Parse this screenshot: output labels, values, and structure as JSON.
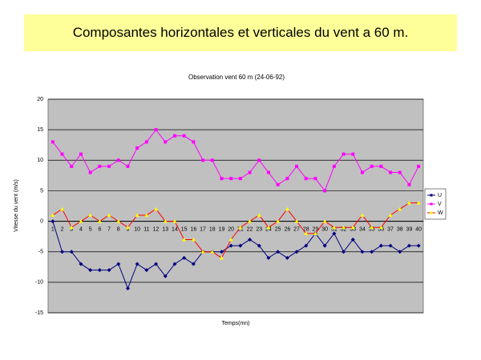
{
  "header": {
    "title": "Composantes horizontales et verticales du vent a  60 m."
  },
  "chart_data": {
    "type": "line",
    "title": "Observation vent 60 m (24-06-92)",
    "x_label": "Temps(mn)",
    "y_label": "Vitesse du vent (m/s)",
    "categories": [
      "1",
      "2",
      "3",
      "4",
      "5",
      "6",
      "7",
      "8",
      "9",
      "10",
      "11",
      "12",
      "13",
      "14",
      "15",
      "16",
      "17",
      "18",
      "19",
      "20",
      "21",
      "22",
      "23",
      "24",
      "25",
      "26",
      "27",
      "28",
      "29",
      "30",
      "31",
      "32",
      "33",
      "34",
      "35",
      "36",
      "37",
      "38",
      "39",
      "40"
    ],
    "series": [
      {
        "name": "U",
        "color": "#000080",
        "marker_color": "#000080",
        "values": [
          0,
          -5,
          -5,
          -7,
          -8,
          -8,
          -8,
          -7,
          -11,
          -7,
          -8,
          -7,
          -9,
          -7,
          -6,
          -7,
          -5,
          -5,
          -5,
          -4,
          -4,
          -3,
          -4,
          -6,
          -5,
          -6,
          -5,
          -4,
          -2,
          -4,
          -2,
          -5,
          -3,
          -5,
          -5,
          -4,
          -4,
          -5,
          -4,
          -4
        ]
      },
      {
        "name": "V",
        "color": "#ff00ff",
        "marker_color": "#ff00ff",
        "values": [
          13,
          11,
          9,
          11,
          8,
          9,
          9,
          10,
          9,
          12,
          13,
          15,
          13,
          14,
          14,
          13,
          10,
          10,
          7,
          7,
          7,
          8,
          10,
          8,
          6,
          7,
          9,
          7,
          7,
          5,
          9,
          11,
          11,
          8,
          9,
          9,
          8,
          8,
          6,
          9
        ]
      },
      {
        "name": "W",
        "color": "#ff0000",
        "marker_color": "#ffff00",
        "values": [
          1,
          2,
          -1,
          0,
          1,
          0,
          1,
          0,
          -1,
          1,
          1,
          2,
          0,
          0,
          -3,
          -3,
          -5,
          -5,
          -6,
          -3,
          -1,
          0,
          1,
          -1,
          0,
          2,
          0,
          -2,
          -2,
          0,
          -1,
          -1,
          -1,
          1,
          -1,
          -1,
          1,
          2,
          3,
          3
        ]
      }
    ],
    "ylim": [
      -15,
      20
    ],
    "yticks": [
      -15,
      -10,
      -5,
      0,
      5,
      10,
      15,
      20
    ],
    "grid": true,
    "legend": "right",
    "plot_background": "#c0c0c0"
  }
}
